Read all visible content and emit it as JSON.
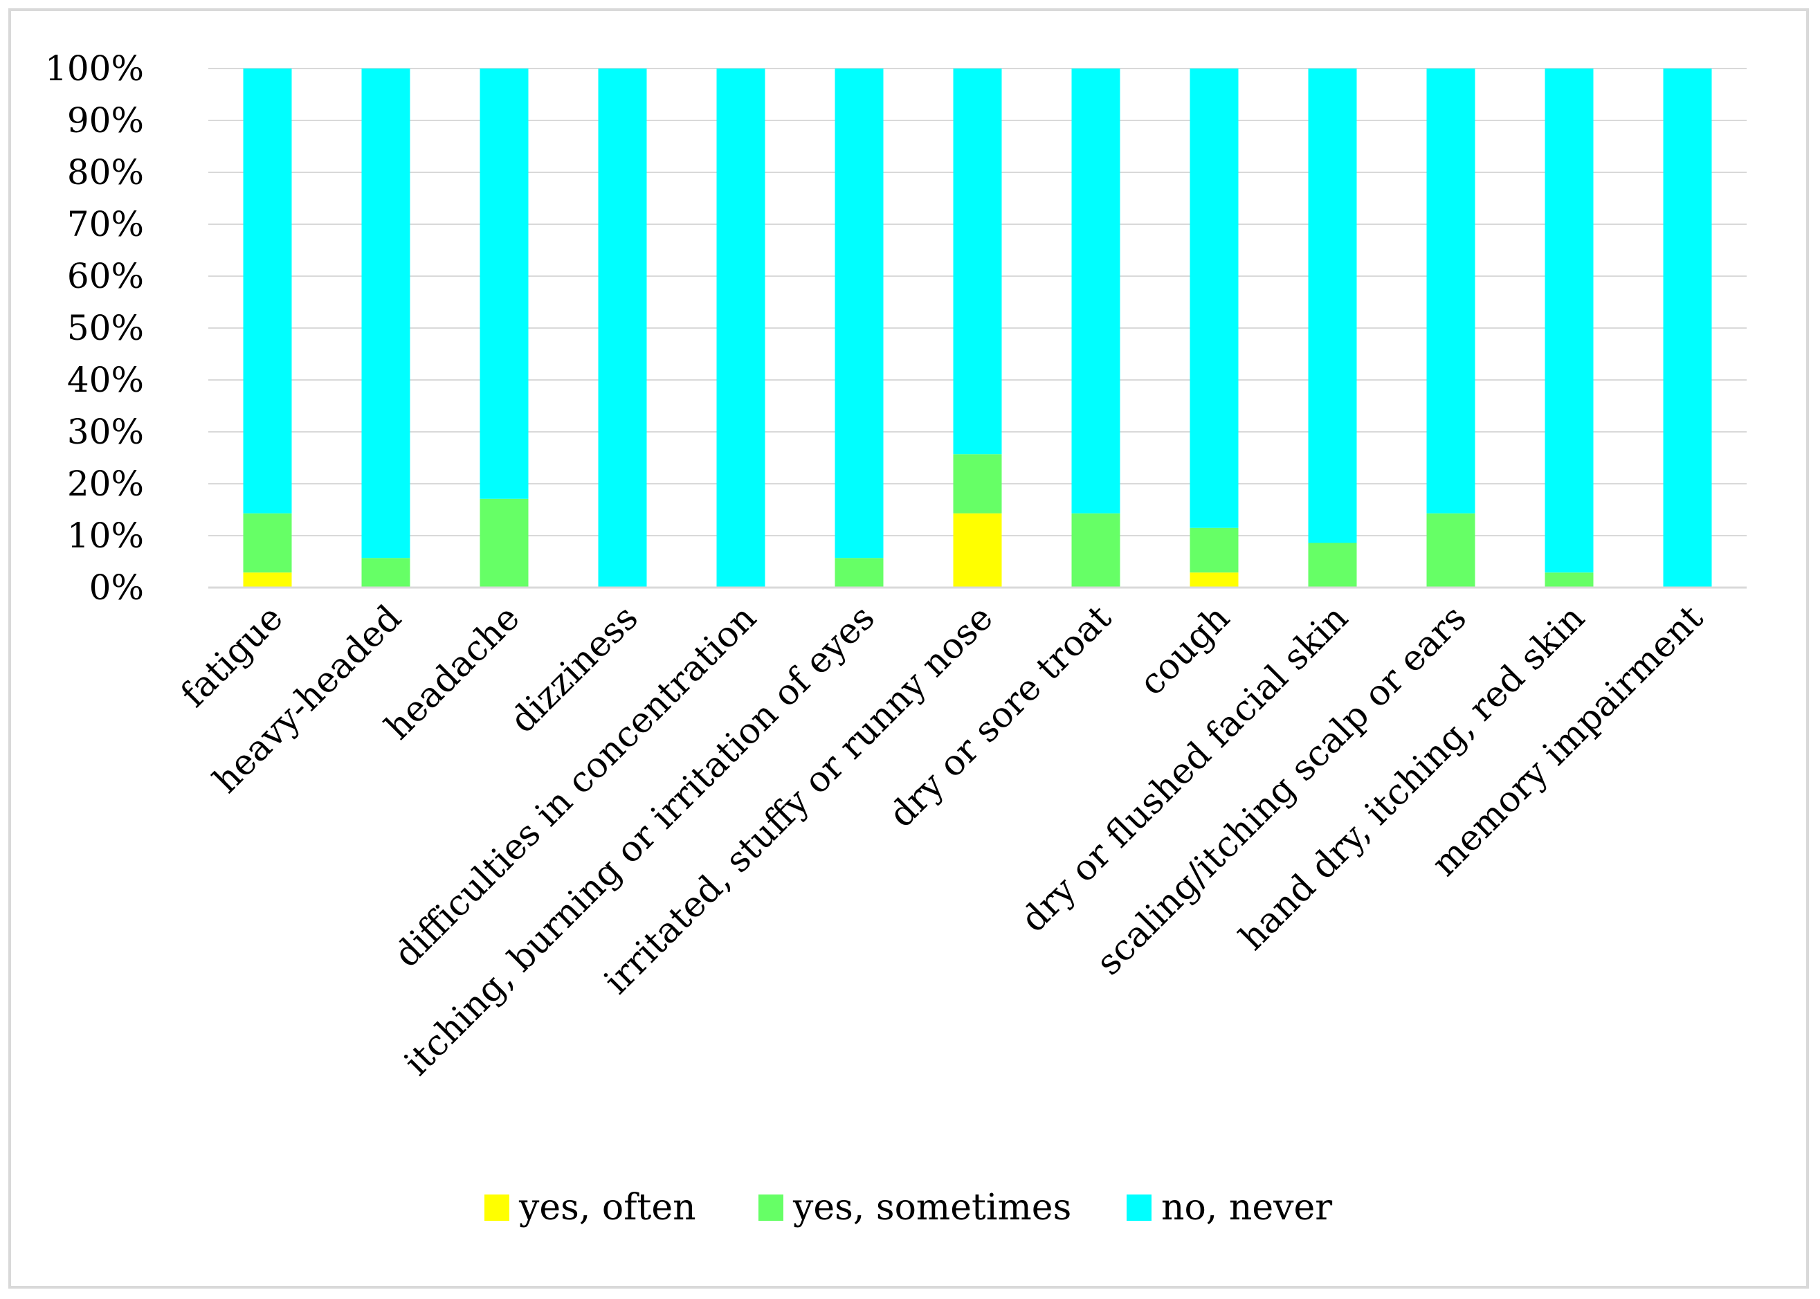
{
  "chart_data": {
    "type": "bar",
    "stacked": true,
    "normalized": true,
    "title": "",
    "xlabel": "",
    "ylabel": "",
    "ylim": [
      0,
      100
    ],
    "yticks": [
      "0%",
      "10%",
      "20%",
      "30%",
      "40%",
      "50%",
      "60%",
      "70%",
      "80%",
      "90%",
      "100%"
    ],
    "grid": true,
    "legend_position": "bottom",
    "categories": [
      "fatigue",
      "heavy-headed",
      "headache",
      "dizziness",
      "difficulties in concentration",
      "itching, burning or irritation of eyes",
      "irritated, stuffy or runny nose",
      "dry or sore troat",
      "cough",
      "dry or flushed facial skin",
      "scaling/itching scalp or ears",
      "hand dry, itching, red skin",
      "memory impairment"
    ],
    "series": [
      {
        "name": "yes, often",
        "color": "#ffff00",
        "values": [
          2.9,
          0,
          0,
          0,
          0,
          0,
          14.3,
          0,
          2.9,
          0,
          0,
          0,
          0
        ]
      },
      {
        "name": "yes, sometimes",
        "color": "#66ff66",
        "values": [
          11.4,
          5.7,
          17.1,
          0,
          0,
          5.7,
          11.4,
          14.3,
          8.6,
          8.6,
          14.3,
          2.9,
          0
        ]
      },
      {
        "name": "no, never",
        "color": "#00ffff",
        "values": [
          85.7,
          94.3,
          82.9,
          100,
          100,
          94.3,
          74.3,
          85.7,
          88.5,
          91.4,
          85.7,
          97.1,
          100
        ]
      }
    ]
  }
}
